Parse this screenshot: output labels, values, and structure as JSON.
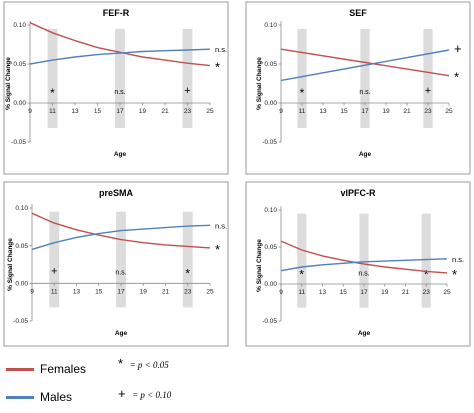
{
  "chart_data": [
    {
      "type": "line",
      "title": "FEF-R",
      "xlabel": "Age",
      "ylabel": "% Signal Change",
      "xlim": [
        9,
        25
      ],
      "ylim": [
        -0.05,
        0.1
      ],
      "xticks": [
        "9",
        "11",
        "13",
        "15",
        "17",
        "19",
        "21",
        "23",
        "25"
      ],
      "yticks": [
        "-0.05",
        "0.00",
        "0.05",
        "0.10"
      ],
      "highlight_ages": [
        11,
        17,
        23
      ],
      "significance": [
        "*",
        "n.s.",
        "+"
      ],
      "series": [
        {
          "name": "Females",
          "color": "#c0504d",
          "x": [
            9,
            11,
            13,
            15,
            17,
            19,
            21,
            23,
            25
          ],
          "y": [
            0.103,
            0.09,
            0.08,
            0.071,
            0.065,
            0.059,
            0.055,
            0.051,
            0.048
          ],
          "end_marker": "*",
          "end_marker_color": "#e03030"
        },
        {
          "name": "Males",
          "color": "#4f81bd",
          "x": [
            9,
            11,
            13,
            15,
            17,
            19,
            21,
            23,
            25
          ],
          "y": [
            0.05,
            0.055,
            0.059,
            0.062,
            0.064,
            0.066,
            0.067,
            0.068,
            0.069
          ],
          "end_marker": "n.s.",
          "end_marker_color": "#3a9bd5"
        }
      ]
    },
    {
      "type": "line",
      "title": "SEF",
      "xlabel": "Age",
      "ylabel": "% Signal Change",
      "xlim": [
        9,
        25
      ],
      "ylim": [
        -0.05,
        0.1
      ],
      "xticks": [
        "9",
        "11",
        "13",
        "15",
        "17",
        "19",
        "21",
        "23",
        "25"
      ],
      "yticks": [
        "-0.05",
        "0.00",
        "0.05",
        "0.10"
      ],
      "highlight_ages": [
        11,
        17,
        23
      ],
      "significance": [
        "*",
        "n.s.",
        "+"
      ],
      "series": [
        {
          "name": "Females",
          "color": "#c0504d",
          "x": [
            9,
            25
          ],
          "y": [
            0.069,
            0.035
          ],
          "end_marker": "*",
          "end_marker_color": "#e03030"
        },
        {
          "name": "Males",
          "color": "#4f81bd",
          "x": [
            9,
            25
          ],
          "y": [
            0.029,
            0.068
          ],
          "end_marker": "+",
          "end_marker_color": "#3a9bd5"
        }
      ]
    },
    {
      "type": "line",
      "title": "preSMA",
      "xlabel": "Age",
      "ylabel": "% Signal Change",
      "xlim": [
        9,
        25
      ],
      "ylim": [
        -0.05,
        0.1
      ],
      "xticks": [
        "9",
        "11",
        "13",
        "15",
        "17",
        "19",
        "21",
        "23",
        "25"
      ],
      "yticks": [
        "-0.05",
        "0.00",
        "0.05",
        "0.10"
      ],
      "highlight_ages": [
        11,
        17,
        23
      ],
      "significance": [
        "+",
        "n.s.",
        "*"
      ],
      "series": [
        {
          "name": "Females",
          "color": "#c0504d",
          "x": [
            9,
            11,
            13,
            15,
            17,
            19,
            21,
            23,
            25
          ],
          "y": [
            0.093,
            0.08,
            0.071,
            0.064,
            0.058,
            0.054,
            0.051,
            0.049,
            0.047
          ],
          "end_marker": "*",
          "end_marker_color": "#e03030"
        },
        {
          "name": "Males",
          "color": "#4f81bd",
          "x": [
            9,
            11,
            13,
            15,
            17,
            19,
            21,
            23,
            25
          ],
          "y": [
            0.045,
            0.054,
            0.061,
            0.066,
            0.07,
            0.072,
            0.074,
            0.076,
            0.077
          ],
          "end_marker": "n.s.",
          "end_marker_color": "#3a9bd5"
        }
      ]
    },
    {
      "type": "line",
      "title": "vlPFC-R",
      "xlabel": "Age",
      "ylabel": "% Signal Change",
      "xlim": [
        9,
        25
      ],
      "ylim": [
        -0.05,
        0.1
      ],
      "xticks": [
        "9",
        "11",
        "13",
        "15",
        "17",
        "19",
        "21",
        "23",
        "25"
      ],
      "yticks": [
        "-0.05",
        "0.00",
        "0.05",
        "0.10"
      ],
      "highlight_ages": [
        11,
        17,
        23
      ],
      "significance": [
        "*",
        "n.s.",
        "*"
      ],
      "series": [
        {
          "name": "Females",
          "color": "#c0504d",
          "x": [
            9,
            11,
            13,
            15,
            17,
            19,
            21,
            23,
            25
          ],
          "y": [
            0.058,
            0.046,
            0.038,
            0.032,
            0.027,
            0.023,
            0.02,
            0.017,
            0.015
          ],
          "end_marker": "*",
          "end_marker_color": "#e03030"
        },
        {
          "name": "Males",
          "color": "#4f81bd",
          "x": [
            9,
            11,
            13,
            15,
            17,
            19,
            21,
            23,
            25
          ],
          "y": [
            0.018,
            0.023,
            0.026,
            0.028,
            0.03,
            0.031,
            0.032,
            0.033,
            0.034
          ],
          "end_marker": "n.s.",
          "end_marker_color": "#3a9bd5"
        }
      ]
    }
  ],
  "legend": {
    "females_label": "Females",
    "males_label": "Males",
    "females_color": "#c0504d",
    "males_color": "#4f81bd",
    "sig1_symbol": "*",
    "sig1_text": "= p < 0.05",
    "sig2_symbol": "+",
    "sig2_text": "= p < 0.10"
  }
}
